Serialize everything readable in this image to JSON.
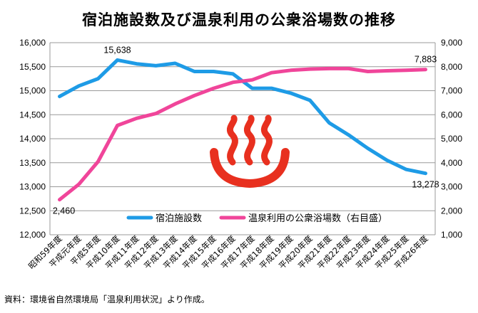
{
  "chart_data": {
    "type": "line",
    "title": "宿泊施設数及び温泉利用の公衆浴場数の推移",
    "categories": [
      "昭和59年度",
      "平成元年度",
      "平成5年度",
      "平成10年度",
      "平成11年度",
      "平成12年度",
      "平成13年度",
      "平成14年度",
      "平成15年度",
      "平成16年度",
      "平成17年度",
      "平成18年度",
      "平成19年度",
      "平成20年度",
      "平成21年度",
      "平成22年度",
      "平成23年度",
      "平成24年度",
      "平成25年度",
      "平成26年度"
    ],
    "series": [
      {
        "name": "宿泊施設数",
        "axis": "left",
        "color": "#1e9be6",
        "values": [
          14880,
          15100,
          15250,
          15638,
          15560,
          15520,
          15570,
          15400,
          15400,
          15350,
          15050,
          15050,
          14950,
          14800,
          14330,
          14080,
          13800,
          13550,
          13360,
          13278
        ]
      },
      {
        "name": "温泉利用の公衆浴場数（右目盛）",
        "axis": "right",
        "color": "#f0459a",
        "values": [
          2460,
          3100,
          4050,
          5550,
          5850,
          6050,
          6450,
          6800,
          7100,
          7350,
          7450,
          7750,
          7850,
          7900,
          7920,
          7920,
          7800,
          7830,
          7850,
          7883
        ]
      }
    ],
    "y_left": {
      "min": 12000,
      "max": 16000,
      "ticks": [
        "12,000",
        "12,500",
        "13,000",
        "13,500",
        "14,000",
        "14,500",
        "15,000",
        "15,500",
        "16,000"
      ]
    },
    "y_right": {
      "min": 1000,
      "max": 9000,
      "ticks": [
        "1,000",
        "2,000",
        "3,000",
        "4,000",
        "5,000",
        "6,000",
        "7,000",
        "8,000",
        "9,000"
      ]
    },
    "data_labels": [
      {
        "series": 0,
        "index": 3,
        "text": "15,638"
      },
      {
        "series": 0,
        "index": 19,
        "text": "13,278"
      },
      {
        "series": 1,
        "index": 0,
        "text": "2,460"
      },
      {
        "series": 1,
        "index": 19,
        "text": "7,883"
      }
    ],
    "legend_position": "bottom-center",
    "grid": true
  },
  "source_note": "資料：環境省自然環境局「温泉利用状況」より作成。",
  "onsen_icon": "hot-spring-icon",
  "colors": {
    "axis": "#999999",
    "grid": "#999999",
    "icon": "#e8301f"
  }
}
